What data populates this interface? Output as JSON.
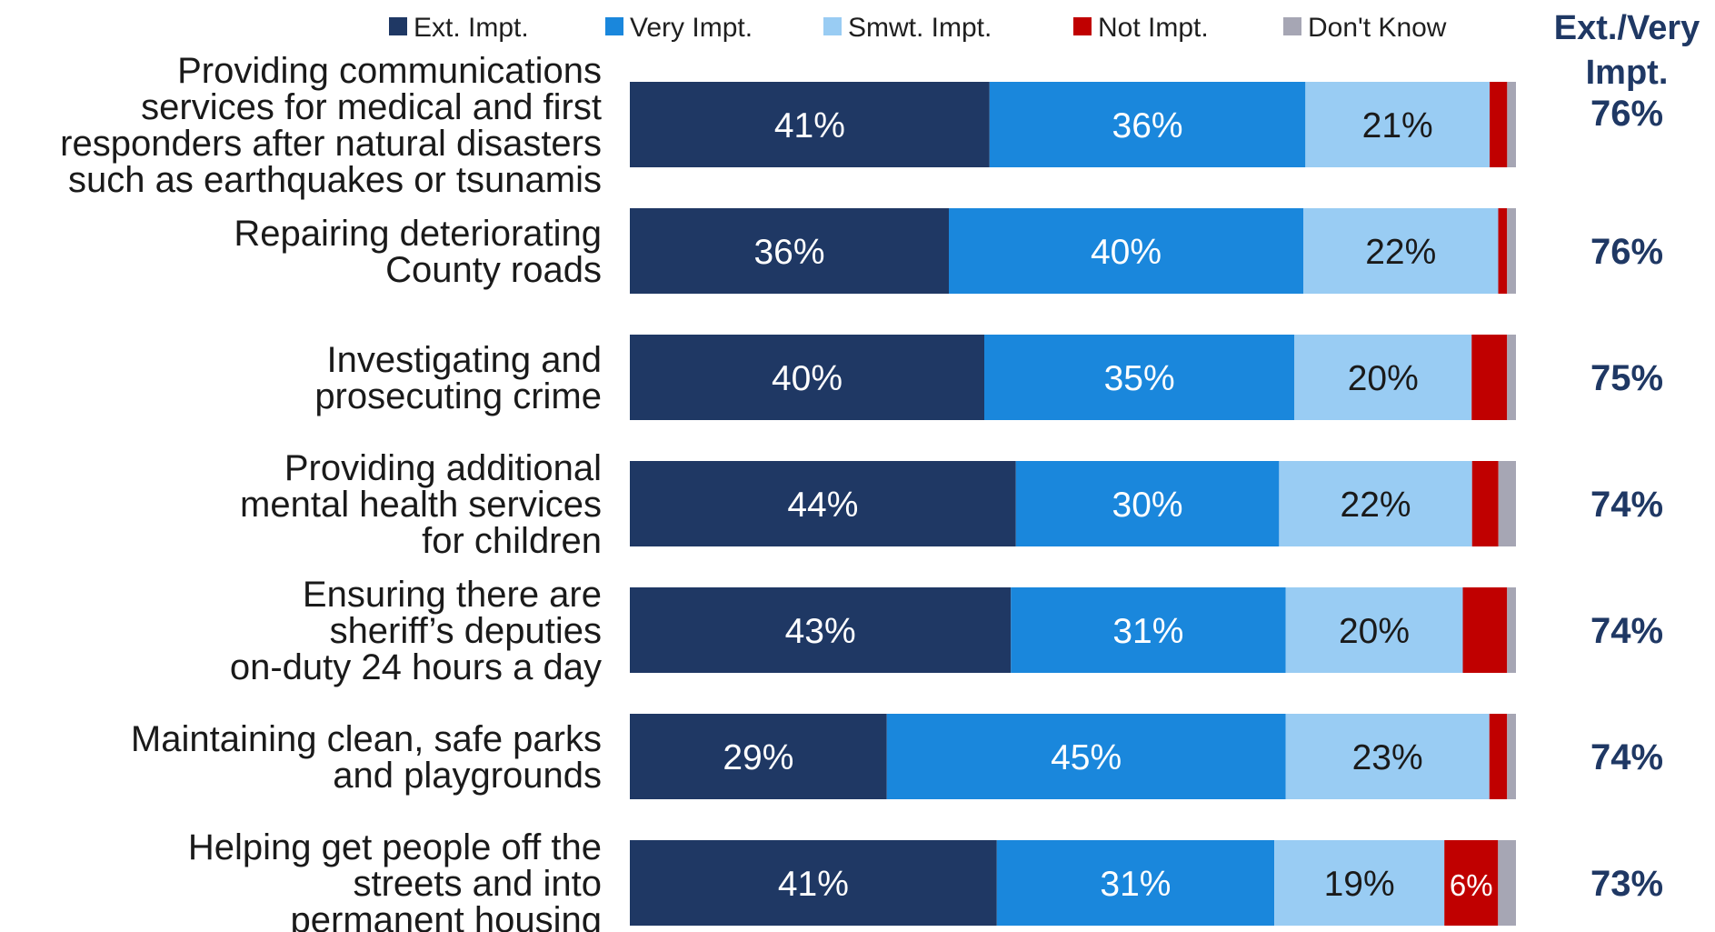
{
  "chart_data": {
    "type": "bar",
    "orientation": "horizontal",
    "stacked": true,
    "xlim": [
      0,
      100
    ],
    "categories": [
      [
        "Providing communications",
        "services for medical and first",
        "responders after natural disasters",
        "such as earthquakes or tsunamis"
      ],
      [
        "Repairing deteriorating",
        "County roads"
      ],
      [
        "Investigating and",
        "prosecuting crime"
      ],
      [
        "Providing additional",
        "mental health services",
        "for children"
      ],
      [
        "Ensuring there are",
        "sheriff’s deputies",
        "on-duty 24 hours a day"
      ],
      [
        "Maintaining clean, safe parks",
        "and playgrounds"
      ],
      [
        "Helping get people off the",
        "streets and into",
        "permanent housing"
      ]
    ],
    "series": [
      {
        "name": "Ext. Impt.",
        "color": "#1f3864",
        "values": [
          41,
          36,
          40,
          44,
          43,
          29,
          41
        ],
        "labels": [
          "41%",
          "36%",
          "40%",
          "44%",
          "43%",
          "29%",
          "41%"
        ]
      },
      {
        "name": "Very Impt.",
        "color": "#1a87dc",
        "values": [
          36,
          40,
          35,
          30,
          31,
          45,
          31
        ],
        "labels": [
          "36%",
          "40%",
          "35%",
          "30%",
          "31%",
          "45%",
          "31%"
        ]
      },
      {
        "name": "Smwt. Impt.",
        "color": "#99ccf3",
        "values": [
          21,
          22,
          20,
          22,
          20,
          23,
          19
        ],
        "labels": [
          "21%",
          "22%",
          "20%",
          "22%",
          "20%",
          "23%",
          "19%"
        ]
      },
      {
        "name": "Not Impt.",
        "color": "#c00000",
        "values": [
          2,
          1,
          4,
          3,
          5,
          2,
          6
        ],
        "labels": [
          "",
          "",
          "",
          "",
          "",
          "",
          "6%"
        ]
      },
      {
        "name": "Don't Know",
        "color": "#a6a6b4",
        "values": [
          1,
          1,
          1,
          2,
          1,
          1,
          2
        ],
        "labels": [
          "",
          "",
          "",
          "",
          "",
          "",
          ""
        ]
      }
    ],
    "summary": {
      "header": [
        "Ext./Very",
        "Impt."
      ],
      "values": [
        "76%",
        "76%",
        "75%",
        "74%",
        "74%",
        "74%",
        "73%"
      ]
    },
    "legend_position": "top"
  }
}
